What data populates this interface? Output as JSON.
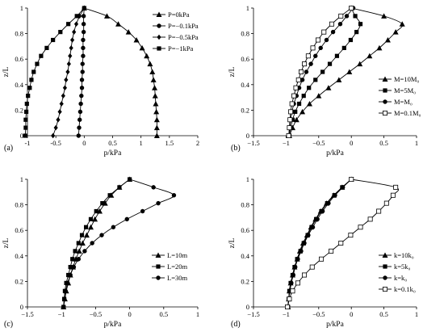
{
  "chart_data": [
    {
      "type": "line",
      "panel_label": "(a)",
      "xlabel": "p/kPa",
      "ylabel": "z/L",
      "xlim": [
        -1,
        2
      ],
      "ylim": [
        0,
        1
      ],
      "xticks": [
        -1,
        -0.5,
        0,
        0.5,
        1,
        1.5,
        2
      ],
      "xtick_labels": [
        "-1",
        "-0.5",
        "0",
        "0.5",
        "1",
        "1.5",
        "2"
      ],
      "yticks": [
        0,
        0.2,
        0.4,
        0.6,
        0.8,
        1
      ],
      "ytick_labels": [
        "0",
        "0.2",
        "0.4",
        "0.6",
        "0.8",
        "1"
      ],
      "legend_position": "top-right",
      "series": [
        {
          "name": "P=0kPa",
          "marker": "triangle",
          "x": [
            1.28,
            1.28,
            1.28,
            1.27,
            1.26,
            1.25,
            1.24,
            1.22,
            1.2,
            1.16,
            1.1,
            1.02,
            0.92,
            0.78,
            0.6,
            0.4,
            0
          ],
          "y": [
            0,
            0.0625,
            0.125,
            0.1875,
            0.25,
            0.3125,
            0.375,
            0.4375,
            0.5,
            0.5625,
            0.625,
            0.6875,
            0.75,
            0.8125,
            0.875,
            0.9375,
            1
          ]
        },
        {
          "name": "P=−0.1kPa",
          "marker": "circle",
          "x": [
            -0.1,
            -0.09,
            -0.08,
            -0.07,
            -0.06,
            -0.05,
            -0.04,
            -0.04,
            -0.03,
            -0.03,
            -0.02,
            -0.02,
            -0.02,
            -0.01,
            -0.01,
            -0.01,
            0
          ],
          "y": [
            0,
            0.0625,
            0.125,
            0.1875,
            0.25,
            0.3125,
            0.375,
            0.4375,
            0.5,
            0.5625,
            0.625,
            0.6875,
            0.75,
            0.8125,
            0.875,
            0.9375,
            1
          ]
        },
        {
          "name": "P=−0.5kPa",
          "marker": "diamond",
          "x": [
            -0.55,
            -0.5,
            -0.46,
            -0.43,
            -0.4,
            -0.37,
            -0.34,
            -0.32,
            -0.29,
            -0.27,
            -0.25,
            -0.23,
            -0.21,
            -0.18,
            -0.14,
            -0.08,
            0
          ],
          "y": [
            0,
            0.0625,
            0.125,
            0.1875,
            0.25,
            0.3125,
            0.375,
            0.4375,
            0.5,
            0.5625,
            0.625,
            0.6875,
            0.75,
            0.8125,
            0.875,
            0.9375,
            1
          ]
        },
        {
          "name": "P=−1kPa",
          "marker": "square",
          "x": [
            -1.04,
            -1.03,
            -1.03,
            -1.02,
            -1.01,
            -0.99,
            -0.96,
            -0.93,
            -0.89,
            -0.83,
            -0.76,
            -0.66,
            -0.55,
            -0.42,
            -0.28,
            -0.13,
            0
          ],
          "y": [
            0,
            0.0625,
            0.125,
            0.1875,
            0.25,
            0.3125,
            0.375,
            0.4375,
            0.5,
            0.5625,
            0.625,
            0.6875,
            0.75,
            0.8125,
            0.875,
            0.9375,
            1
          ]
        }
      ]
    },
    {
      "type": "line",
      "panel_label": "(b)",
      "xlabel": "p/kPa",
      "ylabel": "z/L",
      "xlim": [
        -1.5,
        1
      ],
      "ylim": [
        0,
        1
      ],
      "xticks": [
        -1.5,
        -1,
        -0.5,
        0,
        0.5,
        1
      ],
      "xtick_labels": [
        "−1.5",
        "−1",
        "−0.5",
        "0",
        "0.5",
        "1"
      ],
      "yticks": [
        0,
        0.2,
        0.4,
        0.6,
        0.8,
        1
      ],
      "ytick_labels": [
        "0",
        "0.2",
        "0.4",
        "0.6",
        "0.8",
        "1"
      ],
      "legend_position": "bottom-right",
      "series": [
        {
          "name": "M=10M₀",
          "marker": "triangle",
          "x": [
            -0.95,
            -0.9,
            -0.84,
            -0.75,
            -0.64,
            -0.5,
            -0.35,
            -0.19,
            -0.03,
            0.13,
            0.28,
            0.43,
            0.56,
            0.68,
            0.78,
            0.5,
            0
          ],
          "y": [
            0,
            0.0625,
            0.125,
            0.1875,
            0.25,
            0.3125,
            0.375,
            0.4375,
            0.5,
            0.5625,
            0.625,
            0.6875,
            0.75,
            0.8125,
            0.875,
            0.9375,
            1
          ]
        },
        {
          "name": "M=5M₀",
          "marker": "square",
          "x": [
            -0.95,
            -0.93,
            -0.9,
            -0.86,
            -0.8,
            -0.73,
            -0.65,
            -0.55,
            -0.44,
            -0.33,
            -0.22,
            -0.11,
            -0.01,
            0.08,
            0.14,
            0.06,
            0
          ],
          "y": [
            0,
            0.0625,
            0.125,
            0.1875,
            0.25,
            0.3125,
            0.375,
            0.4375,
            0.5,
            0.5625,
            0.625,
            0.6875,
            0.75,
            0.8125,
            0.875,
            0.9375,
            1
          ]
        },
        {
          "name": "M=M₀",
          "marker": "circle",
          "x": [
            -0.95,
            -0.94,
            -0.93,
            -0.91,
            -0.88,
            -0.84,
            -0.8,
            -0.75,
            -0.69,
            -0.62,
            -0.55,
            -0.47,
            -0.38,
            -0.28,
            -0.17,
            -0.07,
            0.03
          ],
          "y": [
            0,
            0.0625,
            0.125,
            0.1875,
            0.25,
            0.3125,
            0.375,
            0.4375,
            0.5,
            0.5625,
            0.625,
            0.6875,
            0.75,
            0.8125,
            0.875,
            0.9375,
            1
          ]
        },
        {
          "name": "M=0.1M₀",
          "marker": "square-open",
          "x": [
            -0.96,
            -0.95,
            -0.94,
            -0.93,
            -0.91,
            -0.88,
            -0.85,
            -0.81,
            -0.77,
            -0.72,
            -0.66,
            -0.59,
            -0.51,
            -0.42,
            -0.3,
            -0.16,
            0
          ],
          "y": [
            0,
            0.0625,
            0.125,
            0.1875,
            0.25,
            0.3125,
            0.375,
            0.4375,
            0.5,
            0.5625,
            0.625,
            0.6875,
            0.75,
            0.8125,
            0.875,
            0.9375,
            1
          ]
        }
      ]
    },
    {
      "type": "line",
      "panel_label": "(c)",
      "xlabel": "p/kPa",
      "ylabel": "z/L",
      "xlim": [
        -1.5,
        1
      ],
      "ylim": [
        0,
        1
      ],
      "xticks": [
        -1.5,
        -1,
        -0.5,
        0,
        0.5,
        1
      ],
      "xtick_labels": [
        "−1.5",
        "−1",
        "−0.5",
        "0",
        "0.5",
        "1"
      ],
      "yticks": [
        0,
        0.2,
        0.4,
        0.6,
        0.8,
        1
      ],
      "ytick_labels": [
        "0",
        "0.2",
        "0.4",
        "0.6",
        "0.8",
        "1"
      ],
      "legend_position": "bottom-right",
      "series": [
        {
          "name": "L=10m",
          "marker": "triangle",
          "x": [
            -0.97,
            -0.95,
            -0.93,
            -0.9,
            -0.87,
            -0.83,
            -0.79,
            -0.74,
            -0.69,
            -0.63,
            -0.57,
            -0.51,
            -0.44,
            -0.36,
            -0.27,
            -0.15,
            0
          ],
          "y": [
            0,
            0.0625,
            0.125,
            0.1875,
            0.25,
            0.3125,
            0.375,
            0.4375,
            0.5,
            0.5625,
            0.625,
            0.6875,
            0.75,
            0.8125,
            0.875,
            0.9375,
            1
          ]
        },
        {
          "name": "L=20m",
          "marker": "square",
          "x": [
            -0.97,
            -0.96,
            -0.95,
            -0.93,
            -0.9,
            -0.87,
            -0.84,
            -0.8,
            -0.75,
            -0.7,
            -0.64,
            -0.57,
            -0.49,
            -0.4,
            -0.29,
            -0.15,
            0
          ],
          "y": [
            0,
            0.0625,
            0.125,
            0.1875,
            0.25,
            0.3125,
            0.375,
            0.4375,
            0.5,
            0.5625,
            0.625,
            0.6875,
            0.75,
            0.8125,
            0.875,
            0.9375,
            1
          ]
        },
        {
          "name": "L=30m",
          "marker": "circle",
          "x": [
            -0.97,
            -0.96,
            -0.94,
            -0.91,
            -0.87,
            -0.82,
            -0.75,
            -0.66,
            -0.55,
            -0.41,
            -0.24,
            -0.04,
            0.19,
            0.42,
            0.65,
            0.35,
            0
          ],
          "y": [
            0,
            0.0625,
            0.125,
            0.1875,
            0.25,
            0.3125,
            0.375,
            0.4375,
            0.5,
            0.5625,
            0.625,
            0.6875,
            0.75,
            0.8125,
            0.875,
            0.9375,
            1
          ]
        }
      ]
    },
    {
      "type": "line",
      "panel_label": "(d)",
      "xlabel": "p/kPa",
      "ylabel": "z/L",
      "xlim": [
        -1.5,
        1
      ],
      "ylim": [
        0,
        1
      ],
      "xticks": [
        -1.5,
        -1,
        -0.5,
        0,
        0.5,
        1
      ],
      "xtick_labels": [
        "−1.5",
        "−1",
        "−0.5",
        "0",
        "0.5",
        "1"
      ],
      "yticks": [
        0,
        0.2,
        0.4,
        0.6,
        0.8,
        1
      ],
      "ytick_labels": [
        "0",
        "0.2",
        "0.4",
        "0.6",
        "0.8",
        "1"
      ],
      "legend_position": "bottom-right",
      "series": [
        {
          "name": "k=10k₀",
          "marker": "triangle",
          "x": [
            -0.97,
            -0.96,
            -0.95,
            -0.93,
            -0.9,
            -0.87,
            -0.83,
            -0.79,
            -0.74,
            -0.68,
            -0.62,
            -0.55,
            -0.47,
            -0.38,
            -0.27,
            -0.14,
            0
          ],
          "y": [
            0,
            0.0625,
            0.125,
            0.1875,
            0.25,
            0.3125,
            0.375,
            0.4375,
            0.5,
            0.5625,
            0.625,
            0.6875,
            0.75,
            0.8125,
            0.875,
            0.9375,
            1
          ]
        },
        {
          "name": "k=5k₀",
          "marker": "square",
          "x": [
            -0.97,
            -0.96,
            -0.95,
            -0.93,
            -0.9,
            -0.87,
            -0.83,
            -0.78,
            -0.73,
            -0.67,
            -0.61,
            -0.54,
            -0.46,
            -0.37,
            -0.26,
            -0.14,
            0
          ],
          "y": [
            0,
            0.0625,
            0.125,
            0.1875,
            0.25,
            0.3125,
            0.375,
            0.4375,
            0.5,
            0.5625,
            0.625,
            0.6875,
            0.75,
            0.8125,
            0.875,
            0.9375,
            1
          ]
        },
        {
          "name": "k=k₀",
          "marker": "circle",
          "x": [
            -0.97,
            -0.96,
            -0.94,
            -0.92,
            -0.89,
            -0.86,
            -0.82,
            -0.77,
            -0.72,
            -0.66,
            -0.59,
            -0.52,
            -0.44,
            -0.35,
            -0.25,
            -0.13,
            0
          ],
          "y": [
            0,
            0.0625,
            0.125,
            0.1875,
            0.25,
            0.3125,
            0.375,
            0.4375,
            0.5,
            0.5625,
            0.625,
            0.6875,
            0.75,
            0.8125,
            0.875,
            0.9375,
            1
          ]
        },
        {
          "name": "k=0.1k₀",
          "marker": "square-open",
          "x": [
            -0.98,
            -0.95,
            -0.9,
            -0.82,
            -0.72,
            -0.6,
            -0.46,
            -0.31,
            -0.16,
            -0.01,
            0.14,
            0.29,
            0.42,
            0.54,
            0.64,
            0.68,
            0
          ],
          "y": [
            0,
            0.0625,
            0.125,
            0.1875,
            0.25,
            0.3125,
            0.375,
            0.4375,
            0.5,
            0.5625,
            0.625,
            0.6875,
            0.75,
            0.8125,
            0.875,
            0.9375,
            1
          ]
        }
      ]
    }
  ]
}
